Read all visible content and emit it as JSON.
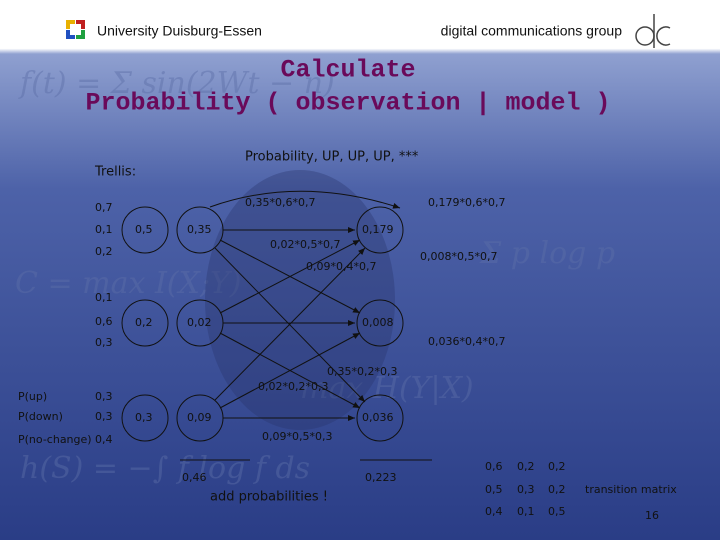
{
  "header": {
    "university": "University Duisburg-Essen",
    "group": "digital communications group"
  },
  "title": {
    "line1": "Calculate",
    "line2": "Probability ( observation | model )"
  },
  "heading": "Probability, UP, UP, UP, ***",
  "trellis_label": "Trellis:",
  "emissions": [
    [
      "0,7",
      "0,1",
      "0,2"
    ],
    [
      "0,1",
      "0,6",
      "0,3"
    ],
    [
      "0,3",
      "0,3",
      "0,4"
    ]
  ],
  "state_labels": [
    "P(up)",
    "P(down)",
    "P(no-change)"
  ],
  "nodes": [
    [
      "0,5",
      "0,35",
      "0,179"
    ],
    [
      "0,2",
      "0,02",
      "0,008"
    ],
    [
      "0,3",
      "0,09",
      "0,036"
    ]
  ],
  "edges": [
    "0,35*0,6*0,7",
    "0,179*0,6*0,7",
    "0,02*0,5*0,7",
    "0,09*0,4*0,7",
    "0,008*0,5*0,7",
    "0,036*0,4*0,7",
    "0,35*0,2*0,3",
    "0,02*0,2*0,3",
    "0,09*0,5*0,3"
  ],
  "sums": [
    "0,46",
    "0,223"
  ],
  "note": "add probabilities !",
  "matrix": {
    "rows": [
      [
        "0,6",
        "0,2",
        "0,2"
      ],
      [
        "0,5",
        "0,3",
        "0,2"
      ],
      [
        "0,4",
        "0,1",
        "0,5"
      ]
    ],
    "label": "transition matrix"
  },
  "page_number": "16"
}
